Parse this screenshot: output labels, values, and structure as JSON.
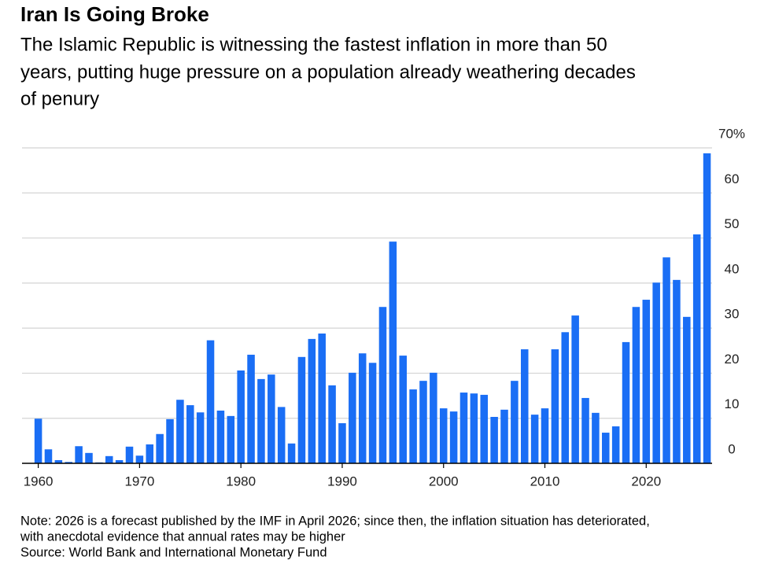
{
  "chart_data": {
    "type": "bar",
    "title": "Iran Is Going Broke",
    "subtitle": [
      "The Islamic Republic is witnessing the fastest inflation in more than 50",
      "years, putting huge pressure on a population already weathering decades",
      "of penury"
    ],
    "notes": [
      "Note: 2026 is a forecast published by the IMF in April 2026; since then, the inflation situation has deteriorated,",
      "with anecdotal evidence that annual rates may be higher",
      "Source: World Bank and International Monetary Fund"
    ],
    "x": [
      1960,
      1961,
      1962,
      1963,
      1964,
      1965,
      1966,
      1967,
      1968,
      1969,
      1970,
      1971,
      1972,
      1973,
      1974,
      1975,
      1976,
      1977,
      1978,
      1979,
      1980,
      1981,
      1982,
      1983,
      1984,
      1985,
      1986,
      1987,
      1988,
      1989,
      1990,
      1991,
      1992,
      1993,
      1994,
      1995,
      1996,
      1997,
      1998,
      1999,
      2000,
      2001,
      2002,
      2003,
      2004,
      2005,
      2006,
      2007,
      2008,
      2009,
      2010,
      2011,
      2012,
      2013,
      2014,
      2015,
      2016,
      2017,
      2018,
      2019,
      2020,
      2021,
      2022,
      2023,
      2024,
      2025,
      2026
    ],
    "values": [
      9.9,
      3.1,
      0.7,
      0.3,
      3.8,
      2.3,
      0.2,
      1.6,
      0.7,
      3.7,
      1.7,
      4.2,
      6.5,
      9.8,
      14.1,
      12.9,
      11.3,
      27.3,
      11.7,
      10.5,
      20.6,
      24.1,
      18.7,
      19.7,
      12.5,
      4.4,
      23.6,
      27.6,
      28.8,
      17.3,
      8.9,
      20.1,
      24.4,
      22.3,
      34.7,
      49.2,
      23.9,
      16.4,
      18.3,
      20.1,
      12.2,
      11.5,
      15.7,
      15.5,
      15.2,
      10.3,
      11.9,
      18.3,
      25.3,
      10.8,
      12.2,
      25.3,
      29.1,
      32.8,
      14.5,
      11.2,
      6.8,
      8.2,
      26.9,
      34.7,
      36.3,
      40.1,
      45.7,
      40.7,
      32.5,
      50.8,
      68.8
    ],
    "color": "#1a6ef5",
    "xlim": [
      1958.4,
      2026.5
    ],
    "xticks": [
      1960,
      1970,
      1980,
      1990,
      2000,
      2010,
      2020
    ],
    "ylim": [
      0,
      70
    ],
    "yticks": [
      0,
      10,
      20,
      30,
      40,
      50,
      60,
      {
        "value": 70,
        "label": "70%"
      }
    ],
    "grid": true
  }
}
